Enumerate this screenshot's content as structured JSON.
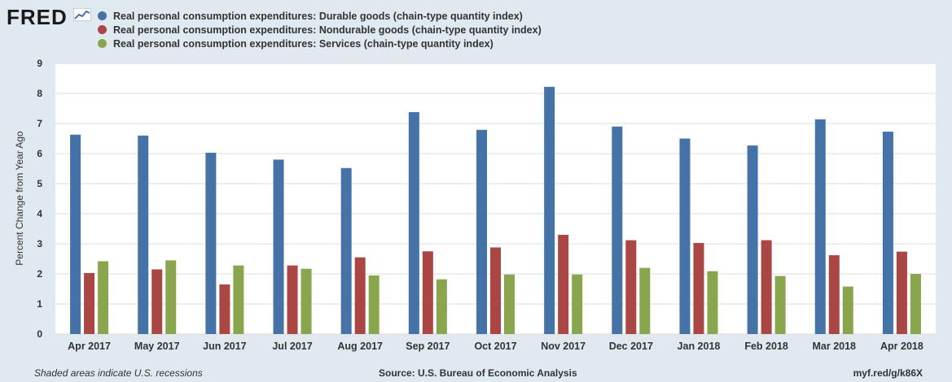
{
  "header": {
    "logo_text": "FRED",
    "logo_icon": "line-chart-icon"
  },
  "colors": {
    "background": "#e1e9f0",
    "plot_background": "#ffffff",
    "grid": "#dddddd"
  },
  "chart_data": {
    "type": "bar",
    "title": "",
    "xlabel": "",
    "ylabel": "Percent Change from Year Ago",
    "ylim": [
      0,
      9
    ],
    "yticks": [
      "0",
      "1",
      "2",
      "3",
      "4",
      "5",
      "6",
      "7",
      "8",
      "9"
    ],
    "grid": true,
    "legend_position": "top-left",
    "categories": [
      "Apr 2017",
      "May 2017",
      "Jun 2017",
      "Jul 2017",
      "Aug 2017",
      "Sep 2017",
      "Oct 2017",
      "Nov 2017",
      "Dec 2017",
      "Jan 2018",
      "Feb 2018",
      "Mar 2018",
      "Apr 2018"
    ],
    "series": [
      {
        "name": "Real personal consumption expenditures: Durable goods (chain-type quantity index)",
        "color": "#4572a7",
        "values": [
          6.63,
          6.6,
          6.03,
          5.8,
          5.52,
          7.38,
          6.79,
          8.22,
          6.9,
          6.5,
          6.27,
          7.14,
          6.73
        ]
      },
      {
        "name": "Real personal consumption expenditures: Nondurable goods (chain-type quantity index)",
        "color": "#aa4643",
        "values": [
          2.03,
          2.15,
          1.65,
          2.28,
          2.55,
          2.75,
          2.88,
          3.3,
          3.12,
          3.03,
          3.12,
          2.62,
          2.74
        ]
      },
      {
        "name": "Real personal consumption expenditures: Services (chain-type quantity index)",
        "color": "#89a54e",
        "values": [
          2.42,
          2.45,
          2.28,
          2.17,
          1.95,
          1.82,
          1.98,
          1.98,
          2.2,
          2.09,
          1.93,
          1.58,
          2.0
        ]
      }
    ]
  },
  "footer": {
    "recession_note": "Shaded areas indicate U.S. recessions",
    "source": "Source: U.S. Bureau of Economic Analysis",
    "link": "myf.red/g/k86X"
  }
}
